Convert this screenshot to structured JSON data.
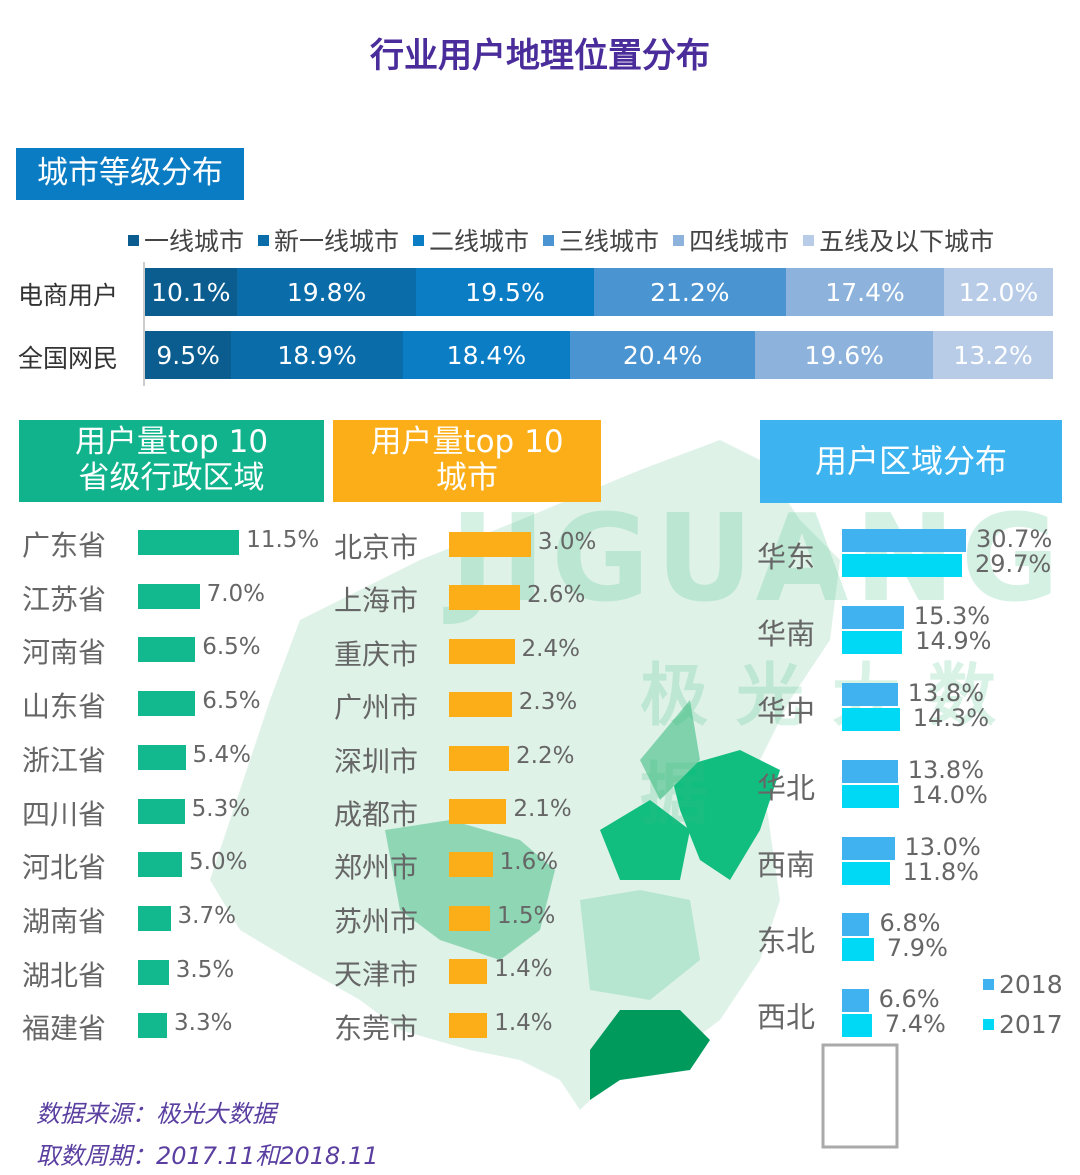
{
  "title": "行业用户地理位置分布",
  "watermark": {
    "logo": "JIGUANG",
    "name": "极光大数据"
  },
  "section_city_tier": {
    "label": "城市等级分布",
    "chart_data": {
      "type": "bar",
      "stacked": true,
      "orientation": "horizontal",
      "categories": [
        "电商用户",
        "全国网民"
      ],
      "series": [
        {
          "name": "一线城市",
          "color": "#0b5d8f",
          "values": [
            10.1,
            9.5
          ],
          "labels": [
            "10.1%",
            "9.5%"
          ]
        },
        {
          "name": "新一线城市",
          "color": "#0a6daa",
          "values": [
            19.8,
            18.9
          ],
          "labels": [
            "19.8%",
            "18.9%"
          ]
        },
        {
          "name": "二线城市",
          "color": "#0a7dc5",
          "values": [
            19.5,
            18.4
          ],
          "labels": [
            "19.5%",
            "18.4%"
          ]
        },
        {
          "name": "三线城市",
          "color": "#4b94d2",
          "values": [
            21.2,
            20.4
          ],
          "labels": [
            "21.2%",
            "20.4%"
          ]
        },
        {
          "name": "四线城市",
          "color": "#8db3dd",
          "values": [
            17.4,
            19.6
          ],
          "labels": [
            "17.4%",
            "19.6%"
          ]
        },
        {
          "name": "五线及以下城市",
          "color": "#b8cce8",
          "values": [
            12.0,
            13.2
          ],
          "labels": [
            "12.0%",
            "13.2%"
          ]
        }
      ],
      "legend": "top"
    }
  },
  "section_province": {
    "label_line1": "用户量top 10",
    "label_line2": "省级行政区域",
    "chart_data": {
      "type": "bar",
      "orientation": "horizontal",
      "color": "#12b88e",
      "categories": [
        "广东省",
        "江苏省",
        "河南省",
        "山东省",
        "浙江省",
        "四川省",
        "河北省",
        "湖南省",
        "湖北省",
        "福建省"
      ],
      "values": [
        11.5,
        7.0,
        6.5,
        6.5,
        5.4,
        5.3,
        5.0,
        3.7,
        3.5,
        3.3
      ],
      "labels": [
        "11.5%",
        "7.0%",
        "6.5%",
        "6.5%",
        "5.4%",
        "5.3%",
        "5.0%",
        "3.7%",
        "3.5%",
        "3.3%"
      ]
    }
  },
  "section_city": {
    "label_line1": "用户量top 10",
    "label_line2": "城市",
    "chart_data": {
      "type": "bar",
      "orientation": "horizontal",
      "color": "#fbae17",
      "categories": [
        "北京市",
        "上海市",
        "重庆市",
        "广州市",
        "深圳市",
        "成都市",
        "郑州市",
        "苏州市",
        "天津市",
        "东莞市"
      ],
      "values": [
        3.0,
        2.6,
        2.4,
        2.3,
        2.2,
        2.1,
        1.6,
        1.5,
        1.4,
        1.4
      ],
      "labels": [
        "3.0%",
        "2.6%",
        "2.4%",
        "2.3%",
        "2.2%",
        "2.1%",
        "1.6%",
        "1.5%",
        "1.4%",
        "1.4%"
      ]
    }
  },
  "section_region": {
    "label": "用户区域分布",
    "chart_data": {
      "type": "bar",
      "orientation": "horizontal",
      "categories": [
        "华东",
        "华南",
        "华中",
        "华北",
        "西南",
        "东北",
        "西北"
      ],
      "series": [
        {
          "name": "2018",
          "color": "#3fb2ef",
          "values": [
            30.7,
            15.3,
            13.8,
            13.8,
            13.0,
            6.8,
            6.6
          ],
          "labels": [
            "30.7%",
            "15.3%",
            "13.8%",
            "13.8%",
            "13.0%",
            "6.8%",
            "6.6%"
          ]
        },
        {
          "name": "2017",
          "color": "#00d9f5",
          "values": [
            29.7,
            14.9,
            14.3,
            14.0,
            11.8,
            7.9,
            7.4
          ],
          "labels": [
            "29.7%",
            "14.9%",
            "14.3%",
            "14.0%",
            "11.8%",
            "7.9%",
            "7.4%"
          ]
        }
      ],
      "legend": "bottom-right"
    }
  },
  "footer": {
    "source": "数据来源：极光大数据",
    "period": "取数周期：2017.11和2018.11"
  }
}
